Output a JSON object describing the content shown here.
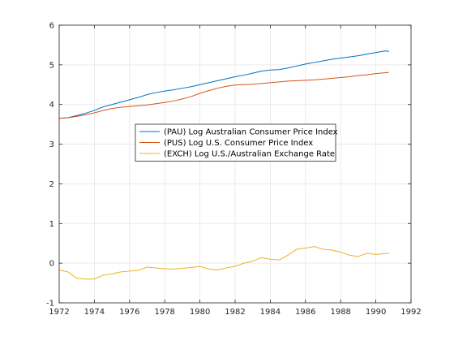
{
  "chart_data": {
    "type": "line",
    "title": "",
    "xlabel": "",
    "ylabel": "",
    "xlim": [
      1972,
      1992
    ],
    "ylim": [
      -1,
      6
    ],
    "xticks": [
      1972,
      1974,
      1976,
      1978,
      1980,
      1982,
      1984,
      1986,
      1988,
      1990,
      1992
    ],
    "yticks": [
      -1,
      0,
      1,
      2,
      3,
      4,
      5,
      6
    ],
    "grid": true,
    "legend_position": "center",
    "x": [
      1972.0,
      1972.5,
      1973.0,
      1973.5,
      1974.0,
      1974.5,
      1975.0,
      1975.5,
      1976.0,
      1976.5,
      1977.0,
      1977.5,
      1978.0,
      1978.5,
      1979.0,
      1979.5,
      1980.0,
      1980.5,
      1981.0,
      1981.5,
      1982.0,
      1982.5,
      1983.0,
      1983.5,
      1984.0,
      1984.5,
      1985.0,
      1985.5,
      1986.0,
      1986.5,
      1987.0,
      1987.5,
      1988.0,
      1988.5,
      1989.0,
      1989.5,
      1990.0,
      1990.5,
      1990.75
    ],
    "series": [
      {
        "name": "(PAU) Log Australian Consumer Price Index",
        "color": "#0072BD",
        "values": [
          3.65,
          3.67,
          3.72,
          3.78,
          3.85,
          3.94,
          4.0,
          4.06,
          4.12,
          4.18,
          4.25,
          4.3,
          4.34,
          4.37,
          4.41,
          4.45,
          4.5,
          4.55,
          4.6,
          4.65,
          4.7,
          4.74,
          4.79,
          4.84,
          4.87,
          4.88,
          4.92,
          4.97,
          5.02,
          5.06,
          5.1,
          5.14,
          5.17,
          5.2,
          5.23,
          5.27,
          5.31,
          5.35,
          5.34
        ]
      },
      {
        "name": "(PUS) Log U.S. Consumer Price Index",
        "color": "#D95319",
        "values": [
          3.65,
          3.67,
          3.7,
          3.74,
          3.79,
          3.85,
          3.9,
          3.93,
          3.95,
          3.97,
          3.99,
          4.02,
          4.05,
          4.09,
          4.14,
          4.2,
          4.28,
          4.35,
          4.41,
          4.46,
          4.49,
          4.5,
          4.51,
          4.53,
          4.55,
          4.57,
          4.59,
          4.6,
          4.61,
          4.62,
          4.64,
          4.66,
          4.68,
          4.7,
          4.73,
          4.75,
          4.78,
          4.8,
          4.81
        ]
      },
      {
        "name": "(EXCH) Log U.S./Australian Exchange Rate",
        "color": "#EDB120",
        "values": [
          -0.17,
          -0.22,
          -0.38,
          -0.4,
          -0.4,
          -0.3,
          -0.27,
          -0.22,
          -0.2,
          -0.18,
          -0.1,
          -0.12,
          -0.14,
          -0.15,
          -0.13,
          -0.11,
          -0.08,
          -0.15,
          -0.17,
          -0.12,
          -0.08,
          0.0,
          0.05,
          0.14,
          0.1,
          0.08,
          0.2,
          0.35,
          0.38,
          0.42,
          0.35,
          0.33,
          0.28,
          0.2,
          0.17,
          0.25,
          0.22,
          0.24,
          0.25
        ]
      }
    ]
  }
}
